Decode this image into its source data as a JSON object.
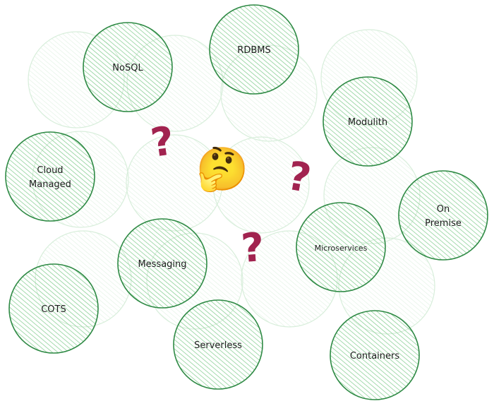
{
  "diagram": {
    "colors": {
      "stroke": "#2f8a45",
      "fill": "#b2e2b8",
      "faint": "#d8eedb",
      "question": "#a1234f"
    },
    "nodes": [
      {
        "id": "nosql",
        "label": [
          "NoSQL"
        ]
      },
      {
        "id": "rdbms",
        "label": [
          "RDBMS"
        ]
      },
      {
        "id": "modulith",
        "label": [
          "Modulith"
        ]
      },
      {
        "id": "cloud-managed",
        "label": [
          "Cloud",
          "Managed"
        ]
      },
      {
        "id": "on-premise",
        "label": [
          "On",
          "Premise"
        ]
      },
      {
        "id": "messaging",
        "label": [
          "Messaging"
        ]
      },
      {
        "id": "microservices",
        "label": [
          "Microservices"
        ]
      },
      {
        "id": "cots",
        "label": [
          "COTS"
        ]
      },
      {
        "id": "serverless",
        "label": [
          "Serverless"
        ]
      },
      {
        "id": "containers",
        "label": [
          "Containers"
        ]
      }
    ],
    "question_mark": "?",
    "center_icon": "thinking-face-icon",
    "center_emoji": "🤔"
  }
}
